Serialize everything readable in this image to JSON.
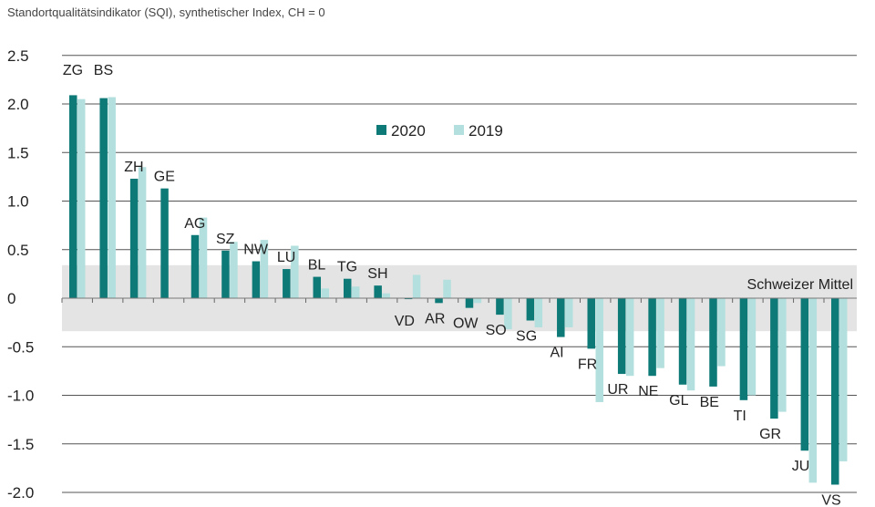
{
  "chart_data": {
    "type": "bar",
    "title": "Standortqualitätsindikator (SQI), synthetischer Index, CH = 0",
    "xlabel": "",
    "ylabel": "",
    "ylim": [
      -2.0,
      2.5
    ],
    "yticks": [
      2.5,
      2.0,
      1.5,
      1.0,
      0.5,
      0,
      -0.5,
      -1.0,
      -1.5,
      -2.0
    ],
    "ytick_labels": [
      "2.5",
      "2.0",
      "1.5",
      "1.0",
      "0.5",
      "0",
      "-0.5",
      "-1.0",
      "-1.5",
      "-2.0"
    ],
    "grid": true,
    "legend_placement": "top-center",
    "categories": [
      "ZG",
      "BS",
      "ZH",
      "GE",
      "AG",
      "SZ",
      "NW",
      "LU",
      "BL",
      "TG",
      "SH",
      "VD",
      "AR",
      "OW",
      "SO",
      "SG",
      "AI",
      "FR",
      "UR",
      "NE",
      "GL",
      "BE",
      "TI",
      "GR",
      "JU",
      "VS"
    ],
    "series": [
      {
        "name": "2020",
        "color": "#0e7a78",
        "values": [
          2.09,
          2.06,
          1.23,
          1.13,
          0.65,
          0.49,
          0.38,
          0.3,
          0.22,
          0.2,
          0.13,
          -0.01,
          -0.05,
          -0.1,
          -0.17,
          -0.23,
          -0.4,
          -0.52,
          -0.78,
          -0.8,
          -0.89,
          -0.91,
          -1.05,
          -1.24,
          -1.57,
          -1.92
        ]
      },
      {
        "name": "2019",
        "color": "#b3e0de",
        "values": [
          2.05,
          2.07,
          1.35,
          null,
          0.83,
          0.58,
          0.6,
          0.54,
          0.1,
          0.12,
          0.05,
          0.24,
          0.19,
          -0.05,
          -0.32,
          -0.3,
          -0.3,
          -1.07,
          -0.8,
          -0.72,
          -0.95,
          -0.7,
          -1.0,
          -1.17,
          -1.9,
          -1.68
        ]
      }
    ],
    "band": {
      "label": "Schweizer Mittel",
      "range": [
        -0.34,
        0.34
      ],
      "color": "#e4e4e4"
    }
  }
}
